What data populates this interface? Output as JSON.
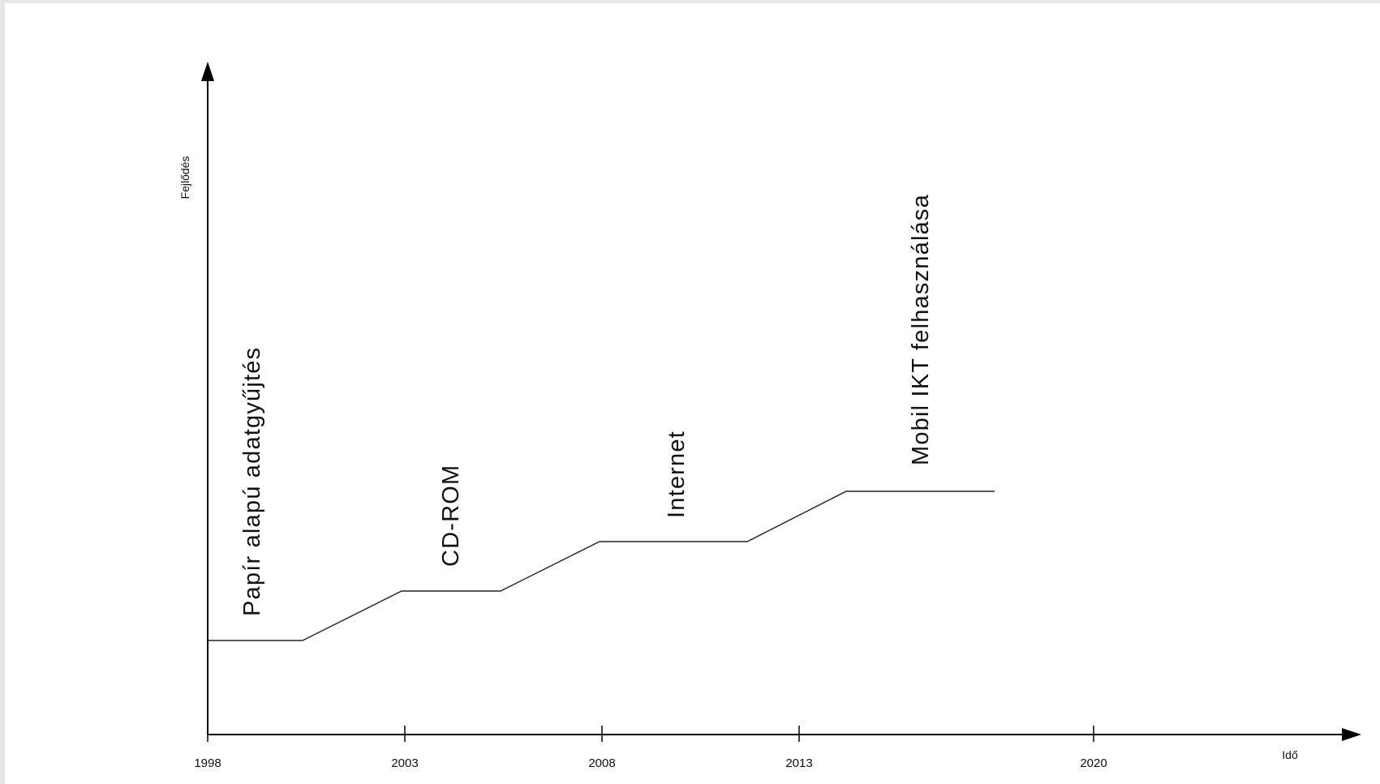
{
  "chart_data": {
    "type": "line",
    "xlabel": "Idő",
    "ylabel": "Fejlődés",
    "x_ticks": [
      "1998",
      "2003",
      "2008",
      "2013",
      "2020"
    ],
    "grid": false,
    "annotations": [
      "Papír alapú adatgyűjtés",
      "CD-ROM",
      "Internet",
      "Mobil IKT felhasználása"
    ]
  }
}
